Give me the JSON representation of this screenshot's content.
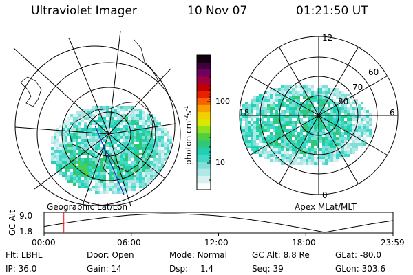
{
  "header": {
    "instrument": "Ultraviolet Imager",
    "date": "10 Nov 07",
    "time": "01:21:50 UT"
  },
  "colorbar": {
    "unit_label": "photon cm",
    "unit_exp1": "-2",
    "unit_mid": "s",
    "unit_exp2": "-1",
    "tick_100": "100",
    "tick_10": "10",
    "colors": [
      "#ffffff",
      "#d8f0f0",
      "#b0e8e8",
      "#80e0d8",
      "#40d8c8",
      "#20d0b0",
      "#30c878",
      "#50d040",
      "#90e020",
      "#d8e800",
      "#f0d000",
      "#f8a000",
      "#f86000",
      "#e82000",
      "#c00000",
      "#a00040",
      "#700060",
      "#400040",
      "#100010"
    ]
  },
  "left_map": {
    "caption": "Geographic Lat/Lon"
  },
  "right_map": {
    "caption": "Apex MLat/MLT",
    "mlt_labels": {
      "top": "12",
      "right": "6",
      "bottom": "0",
      "left": "18"
    },
    "lat_labels": [
      "60",
      "70",
      "80"
    ]
  },
  "timeline": {
    "axis_label": "GC Alt",
    "y_max": "9.0",
    "y_min": "1.8",
    "ticks": [
      "00:00",
      "06:00",
      "12:00",
      "18:00",
      "23:59"
    ],
    "current_marker_hour": 1.36
  },
  "info": {
    "flt_label": "Flt:",
    "flt": "LBHL",
    "ip_label": "IP:",
    "ip": "36.0",
    "door_label": "Door:",
    "door": "Open",
    "gain_label": "Gain:",
    "gain": "14",
    "mode_label": "Mode:",
    "mode": "Normal",
    "dsp_label": "Dsp:",
    "dsp": "1.4",
    "gcalt_label": "GC Alt:",
    "gcalt": "8.8 Re",
    "seq_label": "Seq:",
    "seq": "39",
    "glat_label": "GLat:",
    "glat": "-80.0",
    "glon_label": "GLon:",
    "glon": "303.6"
  },
  "colors": {
    "aurora_low": "#80e0d8",
    "aurora_mid": "#40d0c0",
    "aurora_high": "#60d040",
    "grid": "#000000",
    "marker": "#ff0000",
    "meridian": "#2020c0"
  }
}
